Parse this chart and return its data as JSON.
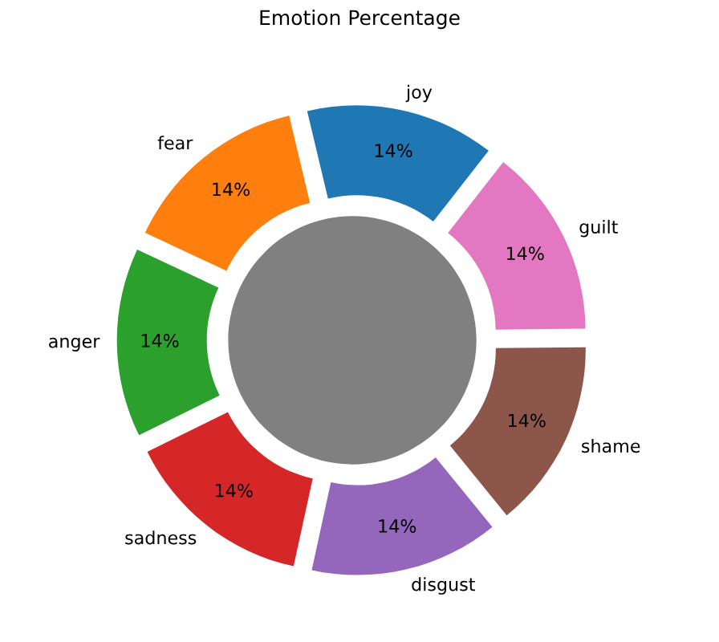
{
  "chart_data": {
    "type": "donut",
    "title": "Emotion Percentage",
    "categories": [
      "joy",
      "fear",
      "anger",
      "sadness",
      "disgust",
      "shame",
      "guilt"
    ],
    "values": [
      14.285714,
      14.285714,
      14.285714,
      14.285714,
      14.285714,
      14.285714,
      14.285714
    ],
    "value_labels": [
      "14%",
      "14%",
      "14%",
      "14%",
      "14%",
      "14%",
      "14%"
    ],
    "colors": [
      "#1f77b4",
      "#ff7f0e",
      "#2ca02c",
      "#d62728",
      "#9467bd",
      "#8c564b",
      "#e377c2"
    ]
  }
}
